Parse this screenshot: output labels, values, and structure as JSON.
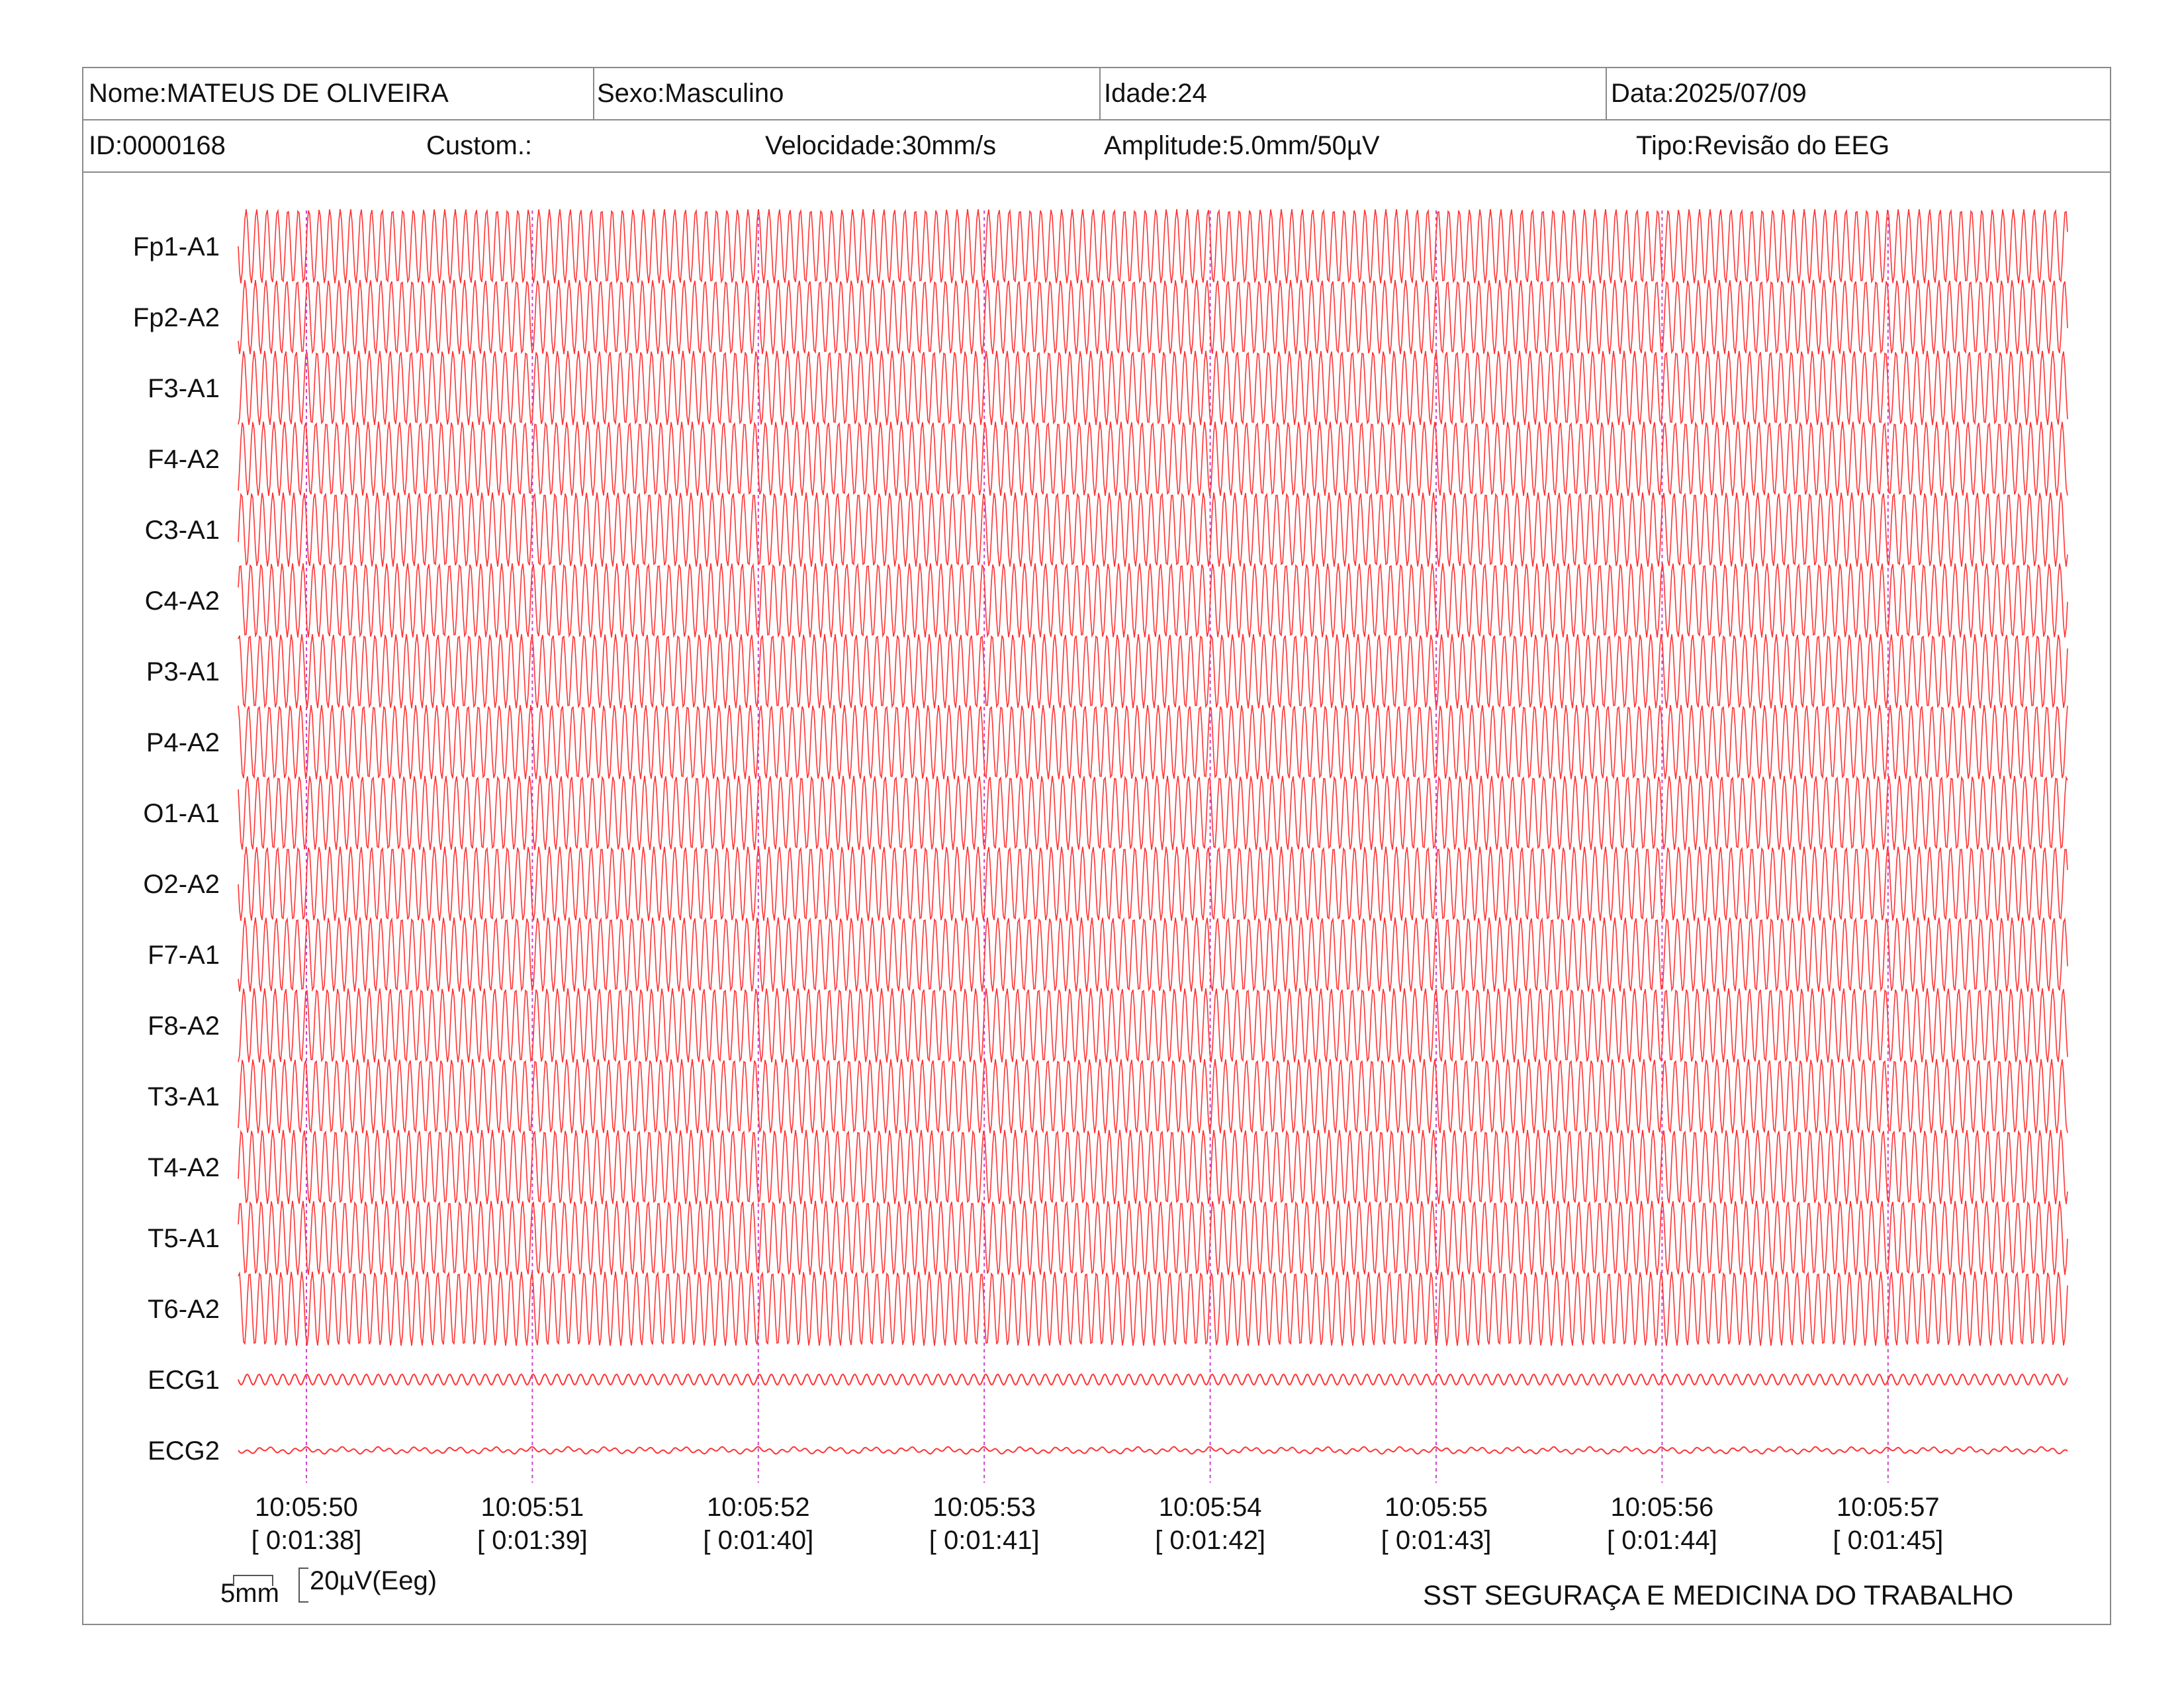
{
  "header": {
    "name": "Nome:MATEUS DE OLIVEIRA",
    "sex": "Sexo:Masculino",
    "age": "Idade:24",
    "date": "Data:2025/07/09",
    "id": "ID:0000168",
    "custom": "Custom.:",
    "speed": "Velocidade:30mm/s",
    "amplitude": "Amplitude:5.0mm/50µV",
    "type": "Tipo:Revisão do EEG"
  },
  "trace_color": "#ff3333",
  "marker_color": "#cc44cc",
  "channels": [
    "Fp1-A1",
    "Fp2-A2",
    "F3-A1",
    "F4-A2",
    "C3-A1",
    "C4-A2",
    "P3-A1",
    "P4-A2",
    "O1-A1",
    "O2-A2",
    "F7-A1",
    "F8-A2",
    "T3-A1",
    "T4-A2",
    "T5-A1",
    "T6-A2",
    "ECG1",
    "ECG2"
  ],
  "time_markers": [
    {
      "clock": "10:05:50",
      "elapsed": "[ 0:01:38]"
    },
    {
      "clock": "10:05:51",
      "elapsed": "[ 0:01:39]"
    },
    {
      "clock": "10:05:52",
      "elapsed": "[ 0:01:40]"
    },
    {
      "clock": "10:05:53",
      "elapsed": "[ 0:01:41]"
    },
    {
      "clock": "10:05:54",
      "elapsed": "[ 0:01:42]"
    },
    {
      "clock": "10:05:55",
      "elapsed": "[ 0:01:43]"
    },
    {
      "clock": "10:05:56",
      "elapsed": "[ 0:01:44]"
    },
    {
      "clock": "10:05:57",
      "elapsed": "[ 0:01:45]"
    }
  ],
  "scale": {
    "time": "5mm",
    "voltage": "20µV(Eeg)"
  },
  "footer": {
    "company": "SST SEGURAÇA E MEDICINA DO TRABALHO"
  }
}
